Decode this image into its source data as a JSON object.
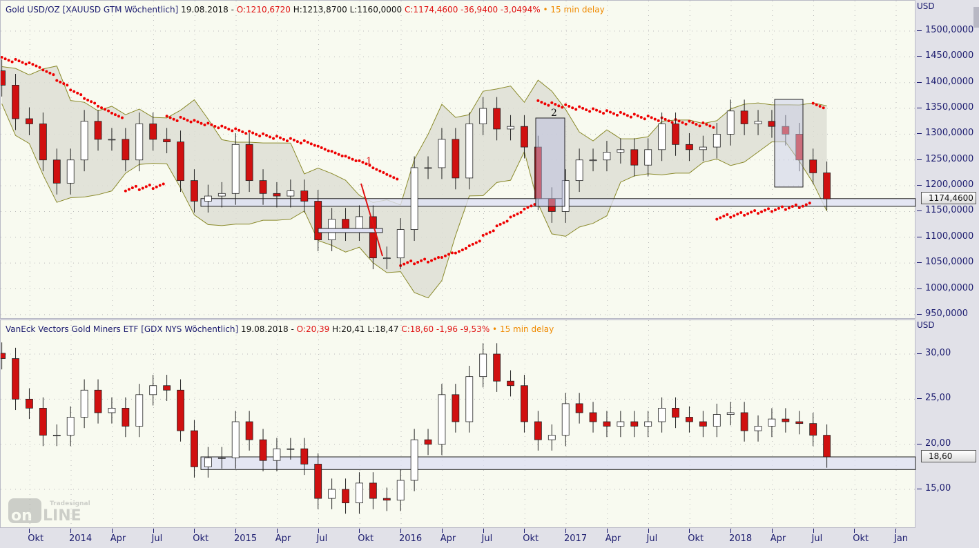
{
  "top_header": {
    "title": "Gold USD/OZ [XAUUSD GTM Wöchentlich]",
    "date": "19.08.2018 -",
    "open": "O:1210,6720",
    "high": "H:1213,8700",
    "low": "L:1160,0000",
    "close_change": "C:1174,4600 -36,9400 -3,0494%",
    "delay": "• 15 min delay"
  },
  "bottom_header": {
    "title": "VanEck Vectors Gold Miners ETF [GDX NYS Wöchentlich]",
    "date": "19.08.2018 -",
    "open": "O:20,39",
    "high": "H:20,41",
    "low": "L:18,47",
    "close_change": "C:18,60 -1,96 -9,53%",
    "delay": "• 15 min delay"
  },
  "logo": {
    "brand": "Tradesignal",
    "word": "ONLINE"
  },
  "chart_data": [
    {
      "type": "candlestick",
      "name": "Gold USD/OZ",
      "currency": "USD",
      "ylim": [
        950,
        1520
      ],
      "yticks": [
        "950,0000",
        "1000,0000",
        "1050,0000",
        "1100,0000",
        "1150,0000",
        "1200,0000",
        "1250,0000",
        "1300,0000",
        "1350,0000",
        "1400,0000",
        "1450,0000",
        "1500,0000"
      ],
      "ytick_values": [
        950,
        1000,
        1050,
        1100,
        1150,
        1200,
        1250,
        1300,
        1350,
        1400,
        1450,
        1500
      ],
      "last_value_label": "1174,4600",
      "last_value": 1174.46,
      "start": "2013-08",
      "interval": "month (approx. of weekly bars)",
      "closes": [
        1395,
        1330,
        1320,
        1250,
        1205,
        1250,
        1325,
        1290,
        1290,
        1250,
        1320,
        1290,
        1285,
        1210,
        1170,
        1180,
        1185,
        1280,
        1210,
        1185,
        1180,
        1190,
        1170,
        1095,
        1135,
        1115,
        1140,
        1060,
        1060,
        1115,
        1235,
        1235,
        1290,
        1215,
        1320,
        1350,
        1310,
        1315,
        1275,
        1175,
        1150,
        1210,
        1250,
        1250,
        1265,
        1270,
        1240,
        1270,
        1320,
        1280,
        1270,
        1275,
        1300,
        1345,
        1320,
        1325,
        1315,
        1300,
        1250,
        1225,
        1174.46
      ],
      "indicators": [
        "Bollinger Bands",
        "Parabolic SAR"
      ],
      "support_zone": [
        1160,
        1175
      ],
      "annotations": [
        "1",
        "2"
      ]
    },
    {
      "type": "candlestick",
      "name": "VanEck Vectors Gold Miners ETF",
      "currency": "USD",
      "ylim": [
        11.5,
        33.5
      ],
      "yticks": [
        "15,00",
        "20,00",
        "25,00",
        "30,00"
      ],
      "ytick_values": [
        15,
        20,
        25,
        30
      ],
      "last_value_label": "18,60",
      "last_value": 18.6,
      "start": "2013-08",
      "closes": [
        29.5,
        25,
        24,
        21,
        21,
        23,
        26,
        23.5,
        24,
        22,
        25.5,
        26.5,
        26,
        21.5,
        17.5,
        18.5,
        18.5,
        22.5,
        20.5,
        18.2,
        19.5,
        19.5,
        17.8,
        14,
        15,
        13.5,
        15.7,
        14,
        13.8,
        16,
        20.5,
        20,
        25.5,
        22.5,
        27.5,
        30,
        27,
        26.5,
        22.5,
        20.5,
        21,
        24.5,
        23.5,
        22.5,
        22,
        22.5,
        22,
        22.5,
        24,
        23,
        22.5,
        22,
        23.3,
        23.5,
        21.5,
        22,
        22.8,
        22.5,
        22.3,
        21,
        18.6
      ],
      "support_zone": [
        17.2,
        18.6
      ]
    }
  ],
  "x_axis": {
    "labels": [
      "Okt",
      "2014",
      "Apr",
      "Jul",
      "Okt",
      "2015",
      "Apr",
      "Jul",
      "Okt",
      "2016",
      "Apr",
      "Jul",
      "Okt",
      "2017",
      "Apr",
      "Jul",
      "Okt",
      "2018",
      "Apr",
      "Jul",
      "Okt",
      "Jan"
    ],
    "dates": [
      2013.75,
      2014,
      2014.25,
      2014.5,
      2014.75,
      2015,
      2015.25,
      2015.5,
      2015.75,
      2016,
      2016.25,
      2016.5,
      2016.75,
      2017,
      2017.25,
      2017.5,
      2017.75,
      2018,
      2018.25,
      2018.5,
      2018.75,
      2019
    ]
  },
  "colors": {
    "up": "#ffffff",
    "down": "#d01010",
    "band": "#8a8a2a",
    "band_fill": "#dcddd3",
    "sar": "#ee0000",
    "zone": "#dfe1f4",
    "axis_text": "#1a1a6e"
  }
}
